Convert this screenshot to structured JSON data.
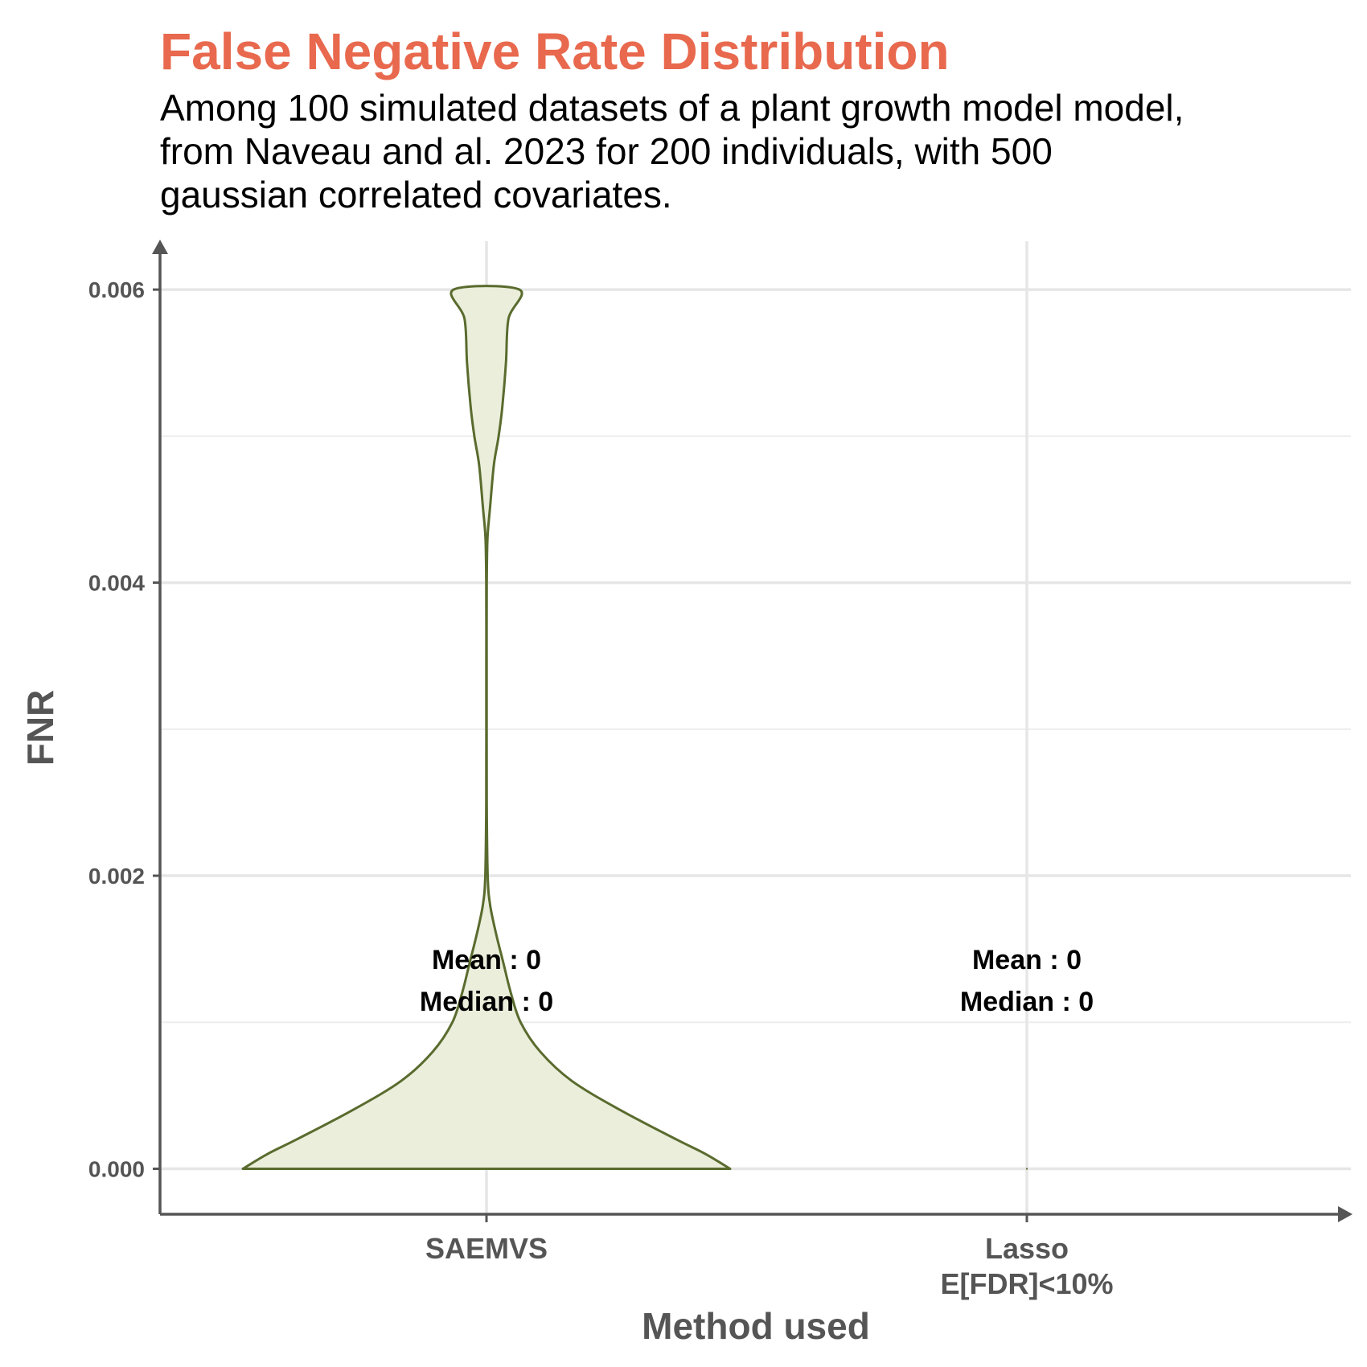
{
  "chart_data": {
    "type": "violin",
    "title": "False Negative Rate Distribution",
    "subtitle": [
      "Among 100 simulated datasets of a plant growth model model,",
      "from Naveau and al. 2023 for 200 individuals, with 500",
      "gaussian correlated covariates."
    ],
    "xlabel": "Method used",
    "ylabel": "FNR",
    "categories": [
      [
        "SAEMVS"
      ],
      [
        "Lasso",
        "E[FDR]<10%"
      ]
    ],
    "ylim": [
      -0.00031,
      0.00633
    ],
    "yticks": [
      0.0,
      0.002,
      0.004,
      0.006
    ],
    "ytick_labels": [
      "0.000",
      "0.002",
      "0.004",
      "0.006"
    ],
    "grid": true,
    "colors": {
      "violin_fill": "#EAEEDB",
      "violin_stroke": "#5A6B2E",
      "title": "#E8694E",
      "axis": "#555555"
    },
    "violins": [
      {
        "category": "SAEMVS",
        "profile": [
          {
            "y": 0.0,
            "w": 1.0
          },
          {
            "y": 0.0001,
            "w": 0.9
          },
          {
            "y": 0.0002,
            "w": 0.78
          },
          {
            "y": 0.0004,
            "w": 0.55
          },
          {
            "y": 0.0006,
            "w": 0.35
          },
          {
            "y": 0.0008,
            "w": 0.22
          },
          {
            "y": 0.001,
            "w": 0.14
          },
          {
            "y": 0.0012,
            "w": 0.1
          },
          {
            "y": 0.0014,
            "w": 0.07
          },
          {
            "y": 0.0016,
            "w": 0.04
          },
          {
            "y": 0.0018,
            "w": 0.015
          },
          {
            "y": 0.002,
            "w": 0.005
          },
          {
            "y": 0.0025,
            "w": 0.001
          },
          {
            "y": 0.003,
            "w": 0.0005
          },
          {
            "y": 0.0035,
            "w": 0.0005
          },
          {
            "y": 0.004,
            "w": 0.001
          },
          {
            "y": 0.0043,
            "w": 0.004
          },
          {
            "y": 0.0045,
            "w": 0.014
          },
          {
            "y": 0.0048,
            "w": 0.03
          },
          {
            "y": 0.005,
            "w": 0.05
          },
          {
            "y": 0.0052,
            "w": 0.065
          },
          {
            "y": 0.0055,
            "w": 0.08
          },
          {
            "y": 0.0058,
            "w": 0.09
          },
          {
            "y": 0.006,
            "w": 0.135
          }
        ]
      },
      {
        "category": "Lasso E[FDR]<10%",
        "profile": []
      }
    ],
    "annotations": [
      {
        "category": "SAEMVS",
        "mean_label": "Mean : 0",
        "median_label": "Median : 0",
        "mean": 0,
        "median": 0
      },
      {
        "category": "Lasso E[FDR]<10%",
        "mean_label": "Mean : 0",
        "median_label": "Median : 0",
        "mean": 0,
        "median": 0
      }
    ]
  }
}
